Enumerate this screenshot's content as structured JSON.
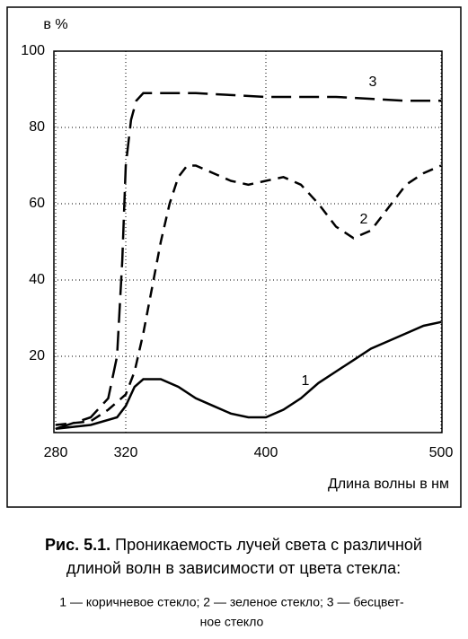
{
  "chart_data": {
    "type": "line",
    "y_label": "в %",
    "x_label": "Длина волны в нм",
    "xlim": [
      280,
      500
    ],
    "ylim": [
      0,
      100
    ],
    "xticks": [
      280,
      320,
      400,
      500
    ],
    "yticks": [
      20,
      40,
      60,
      80,
      100
    ],
    "grid": true,
    "series": [
      {
        "name": "1",
        "color": "#000000",
        "style": "solid",
        "x": [
          280,
          300,
          315,
          320,
          325,
          330,
          340,
          350,
          360,
          370,
          380,
          390,
          400,
          410,
          420,
          430,
          440,
          450,
          460,
          470,
          480,
          490,
          500
        ],
        "values": [
          1,
          2,
          4,
          7,
          12,
          14,
          14,
          12,
          9,
          7,
          5,
          4,
          4,
          6,
          9,
          13,
          16,
          19,
          22,
          24,
          26,
          28,
          29
        ]
      },
      {
        "name": "2",
        "color": "#000000",
        "style": "dashed",
        "x": [
          280,
          300,
          310,
          320,
          325,
          330,
          335,
          340,
          345,
          350,
          355,
          360,
          370,
          380,
          390,
          400,
          410,
          420,
          430,
          440,
          450,
          460,
          470,
          480,
          490,
          500
        ],
        "values": [
          2,
          3,
          6,
          10,
          16,
          26,
          38,
          50,
          60,
          67,
          70,
          70,
          68,
          66,
          65,
          66,
          67,
          65,
          60,
          54,
          51,
          53,
          59,
          65,
          68,
          70
        ]
      },
      {
        "name": "3",
        "color": "#000000",
        "style": "longdash",
        "x": [
          280,
          300,
          310,
          315,
          318,
          320,
          323,
          326,
          330,
          340,
          360,
          380,
          400,
          420,
          440,
          460,
          480,
          500
        ],
        "values": [
          1,
          4,
          9,
          20,
          45,
          70,
          82,
          87,
          89,
          89,
          89,
          88.5,
          88,
          88,
          88,
          87.5,
          87,
          87
        ]
      }
    ],
    "caption": {
      "label": "Рис. 5.1.",
      "lines": [
        "Проникаемость лучей света с различной",
        "длиной волн в зависимости от цвета стекла:"
      ],
      "legend_lines": [
        "1 — коричневое стекло; 2 — зеленое стекло; 3 — бесцвет-",
        "ное стекло"
      ]
    }
  }
}
